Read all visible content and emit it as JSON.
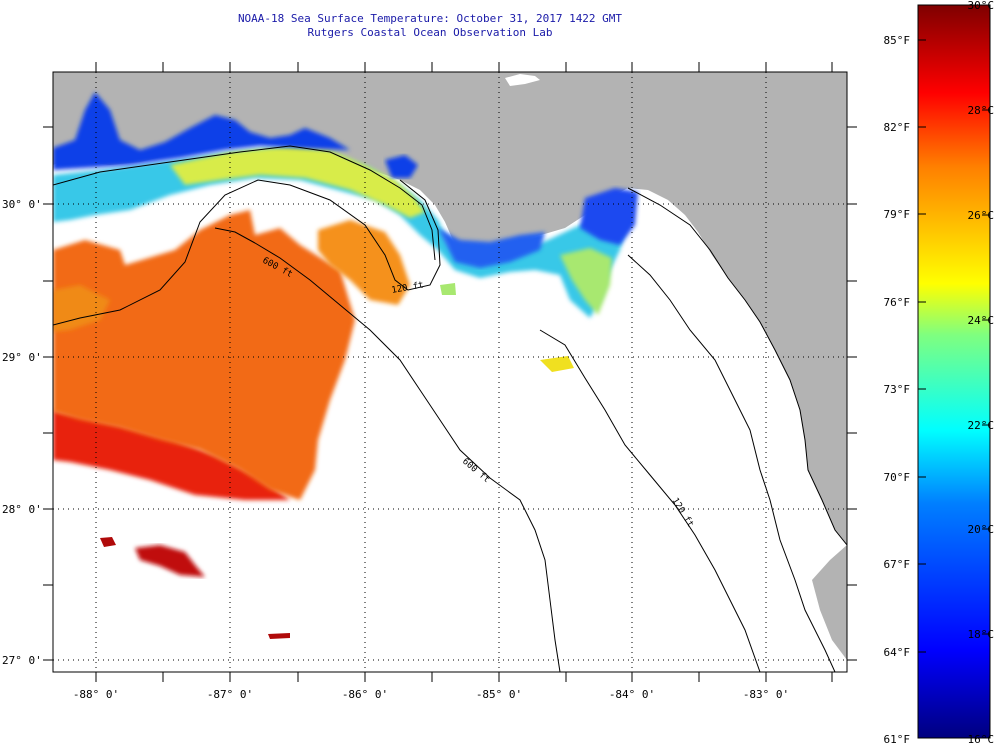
{
  "title": {
    "line1": "NOAA-18 Sea Surface Temperature:  October 31, 2017 1422 GMT",
    "line2": "Rutgers Coastal Ocean Observation Lab"
  },
  "map": {
    "lat_labels": [
      "30° 0'",
      "29° 0'",
      "28° 0'",
      "27° 0'"
    ],
    "lon_labels": [
      "-88° 0'",
      "-87° 0'",
      "-86° 0'",
      "-85° 0'",
      "-84° 0'",
      "-83° 0'"
    ],
    "contour_labels": [
      "600 ft",
      "120 ft",
      "600 ft",
      "120 ft"
    ],
    "colors": {
      "land": "#b3b3b3",
      "no_data": "#ffffff"
    }
  },
  "colorbar": {
    "celsius_labels": [
      "30°C",
      "28°C",
      "26°C",
      "24°C",
      "22°C",
      "20°C",
      "18°C",
      "16°C"
    ],
    "fahrenheit_labels": [
      "85°F",
      "82°F",
      "79°F",
      "76°F",
      "73°F",
      "70°F",
      "67°F",
      "64°F",
      "61°F"
    ],
    "colors": [
      "#00007f",
      "#0000ff",
      "#007fff",
      "#00ffff",
      "#7fff7f",
      "#ffff00",
      "#ff7f00",
      "#ff0000",
      "#7f0000"
    ]
  }
}
